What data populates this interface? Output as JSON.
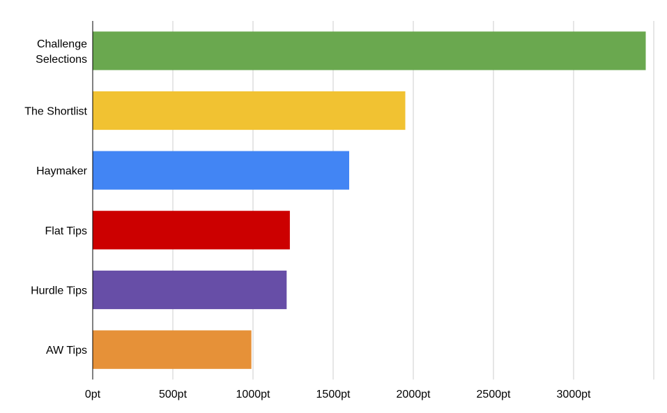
{
  "chart_data": {
    "type": "bar",
    "orientation": "horizontal",
    "title": "",
    "xlabel": "",
    "ylabel": "",
    "xlim": [
      0,
      3500
    ],
    "grid": true,
    "legend": "none",
    "categories": [
      [
        "Challenge",
        "Selections"
      ],
      [
        "The Shortlist"
      ],
      [
        "Haymaker"
      ],
      [
        "Flat Tips"
      ],
      [
        "Hurdle Tips"
      ],
      [
        "AW Tips"
      ]
    ],
    "values": [
      3450,
      1950,
      1600,
      1230,
      1210,
      990
    ],
    "colors": [
      "#6aa84f",
      "#f1c232",
      "#4285f4",
      "#cc0000",
      "#674ea7",
      "#e69138"
    ],
    "x_ticks": [
      {
        "value": 0,
        "label": "0pt"
      },
      {
        "value": 500,
        "label": "500pt"
      },
      {
        "value": 1000,
        "label": "1000pt"
      },
      {
        "value": 1500,
        "label": "1500pt"
      },
      {
        "value": 2000,
        "label": "2000pt"
      },
      {
        "value": 2500,
        "label": "2500pt"
      },
      {
        "value": 3000,
        "label": "3000pt"
      }
    ]
  }
}
